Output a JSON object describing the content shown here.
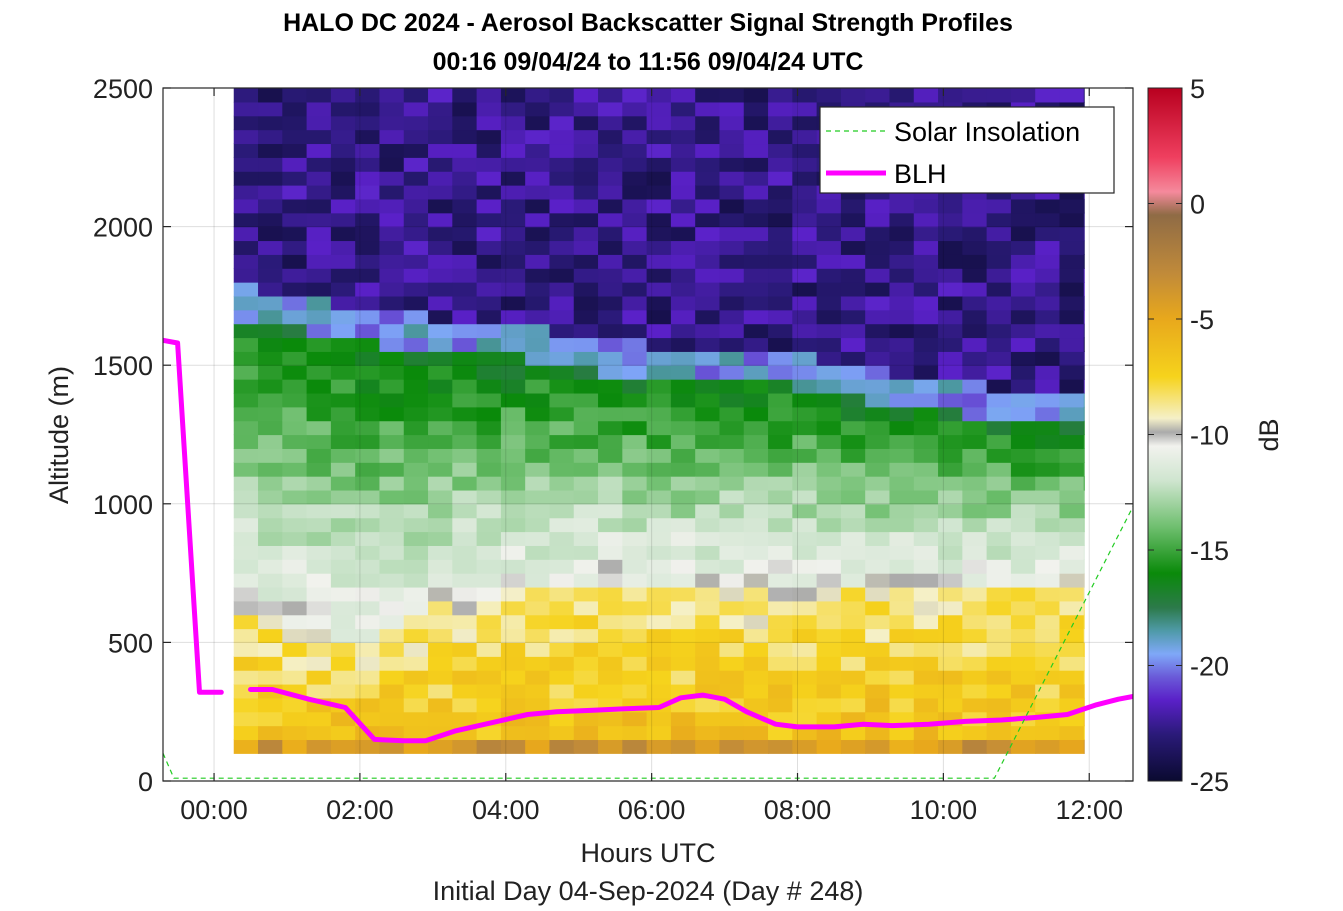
{
  "title_line1": "HALO DC 2024 - Aerosol Backscatter Signal Strength Profiles",
  "title_line2": "00:16 09/04/24 to 11:56 09/04/24  UTC",
  "xlabel": "Hours UTC",
  "day_label": "Initial Day 04-Sep-2024 (Day # 248)",
  "ylabel": "Altitude (m)",
  "colorbar_label": "dB",
  "legend": [
    {
      "label": "Solar Insolation",
      "color": "#22cc22",
      "style": "dashed"
    },
    {
      "label": "BLH",
      "color": "#ff00ff",
      "style": "solid"
    }
  ],
  "x_ticks": [
    "00:00",
    "02:00",
    "04:00",
    "06:00",
    "08:00",
    "10:00",
    "12:00"
  ],
  "y_ticks": [
    "0",
    "500",
    "1000",
    "1500",
    "2000",
    "2500"
  ],
  "colorbar_ticks": [
    "5",
    "0",
    "-5",
    "-10",
    "-15",
    "-20",
    "-25"
  ],
  "chart_data": {
    "type": "heatmap",
    "xlabel": "Hours UTC",
    "ylabel": "Altitude (m)",
    "xlim": [
      -0.7,
      12.6
    ],
    "ylim": [
      0,
      2500
    ],
    "x_tick_values": [
      0,
      2,
      4,
      6,
      8,
      10,
      12
    ],
    "y_tick_values": [
      0,
      500,
      1000,
      1500,
      2000,
      2500
    ],
    "grid": true,
    "legend_position": "top-right",
    "heatmap": {
      "x_start": 0.27,
      "x_end": 11.93,
      "x_step": 0.333,
      "alt_start": 100,
      "alt_end": 2500,
      "alt_step": 50,
      "layers_m": {
        "surface_layer_top": [
          [
            0.27,
            600
          ],
          [
            1,
            530
          ],
          [
            2,
            480
          ],
          [
            3,
            620
          ],
          [
            4,
            660
          ],
          [
            5,
            700
          ],
          [
            6,
            700
          ],
          [
            8,
            700
          ],
          [
            10,
            700
          ],
          [
            11,
            700
          ],
          [
            11.93,
            700
          ]
        ],
        "mixed_layer_top": [
          [
            0.27,
            1640
          ],
          [
            1,
            1600
          ],
          [
            2,
            1550
          ],
          [
            3,
            1520
          ],
          [
            4,
            1500
          ],
          [
            5,
            1460
          ],
          [
            6,
            1420
          ],
          [
            7,
            1420
          ],
          [
            8,
            1390
          ],
          [
            9,
            1330
          ],
          [
            10,
            1300
          ],
          [
            11,
            1260
          ],
          [
            11.93,
            1250
          ]
        ]
      },
      "colorbar": {
        "label": "dB",
        "range": [
          -25,
          5
        ],
        "stops": [
          {
            "db": 5,
            "color": "#b8001f"
          },
          {
            "db": 2,
            "color": "#ef3f5f"
          },
          {
            "db": 0.5,
            "color": "#f58a9c"
          },
          {
            "db": -0.5,
            "color": "#8f6b45"
          },
          {
            "db": -3,
            "color": "#c08a3a"
          },
          {
            "db": -5,
            "color": "#e8a81c"
          },
          {
            "db": -7.5,
            "color": "#f6d31c"
          },
          {
            "db": -9.3,
            "color": "#f5f0c8"
          },
          {
            "db": -9.9,
            "color": "#aaaaaa"
          },
          {
            "db": -10.5,
            "color": "#f2f2ee"
          },
          {
            "db": -12,
            "color": "#cfe5cf"
          },
          {
            "db": -14,
            "color": "#6fbf6f"
          },
          {
            "db": -16,
            "color": "#0a8a0a"
          },
          {
            "db": -17.5,
            "color": "#2c7a4a"
          },
          {
            "db": -18.5,
            "color": "#4f9aa8"
          },
          {
            "db": -19.5,
            "color": "#7fa8f8"
          },
          {
            "db": -20.5,
            "color": "#6a5ad8"
          },
          {
            "db": -21.5,
            "color": "#5a20c8"
          },
          {
            "db": -23,
            "color": "#2a1a78"
          },
          {
            "db": -25,
            "color": "#0a0a30"
          }
        ]
      }
    },
    "series": [
      {
        "name": "BLH",
        "color": "#ff00ff",
        "segments": [
          [
            [
              -0.7,
              1590
            ],
            [
              -0.5,
              1580
            ],
            [
              -0.2,
              320
            ],
            [
              0.1,
              320
            ]
          ],
          [
            [
              0.5,
              330
            ],
            [
              0.8,
              330
            ],
            [
              1.3,
              295
            ],
            [
              1.8,
              265
            ],
            [
              2.2,
              150
            ],
            [
              2.6,
              145
            ],
            [
              2.9,
              145
            ],
            [
              3.3,
              180
            ],
            [
              3.8,
              210
            ],
            [
              4.3,
              240
            ],
            [
              4.7,
              250
            ],
            [
              5.2,
              255
            ],
            [
              5.6,
              260
            ],
            [
              6.1,
              265
            ],
            [
              6.4,
              300
            ],
            [
              6.7,
              310
            ],
            [
              7.0,
              295
            ],
            [
              7.3,
              250
            ],
            [
              7.7,
              205
            ],
            [
              8.0,
              195
            ],
            [
              8.5,
              195
            ],
            [
              8.9,
              205
            ],
            [
              9.3,
              200
            ],
            [
              9.8,
              205
            ],
            [
              10.3,
              215
            ],
            [
              10.8,
              220
            ],
            [
              11.3,
              230
            ],
            [
              11.7,
              240
            ],
            [
              12.1,
              275
            ],
            [
              12.4,
              295
            ],
            [
              12.6,
              305
            ]
          ]
        ]
      },
      {
        "name": "Solar Insolation",
        "color": "#22cc22",
        "style": "dashed",
        "points": [
          [
            -0.7,
            100
          ],
          [
            -0.55,
            10
          ],
          [
            10.7,
            10
          ],
          [
            12.6,
            990
          ]
        ]
      }
    ]
  }
}
